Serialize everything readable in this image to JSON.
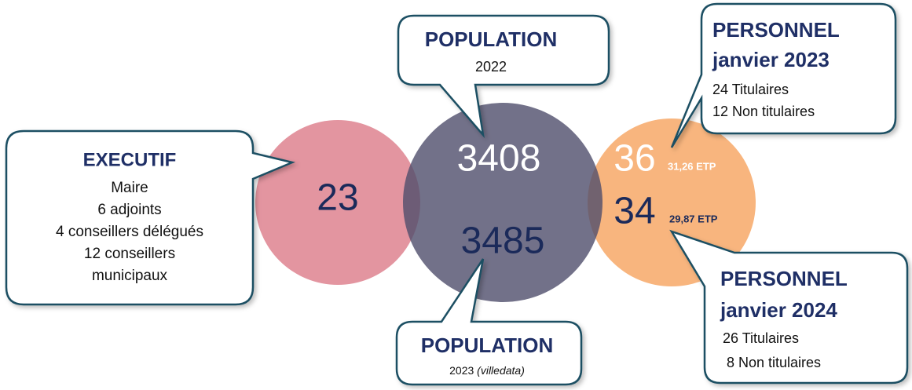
{
  "executif": {
    "title": "EXECUTIF",
    "count": "23",
    "lines": [
      "Maire",
      "6 adjoints",
      "4 conseillers délégués",
      "12 conseillers",
      "municipaux"
    ]
  },
  "population_2022": {
    "title": "POPULATION",
    "year": "2022",
    "count": "3408"
  },
  "population_2023": {
    "title": "POPULATION",
    "year": "2023",
    "source": "(villedata)",
    "count": "3485"
  },
  "personnel_2023": {
    "title": "PERSONNEL",
    "date": "janvier 2023",
    "count": "36",
    "etp": "31,26 ETP",
    "lines": [
      "24 Titulaires",
      "12 Non titulaires"
    ]
  },
  "personnel_2024": {
    "title": "PERSONNEL",
    "date": "janvier 2024",
    "count": "34",
    "etp": "29,87 ETP",
    "lines": [
      "26 Titulaires",
      "8 Non titulaires"
    ]
  }
}
